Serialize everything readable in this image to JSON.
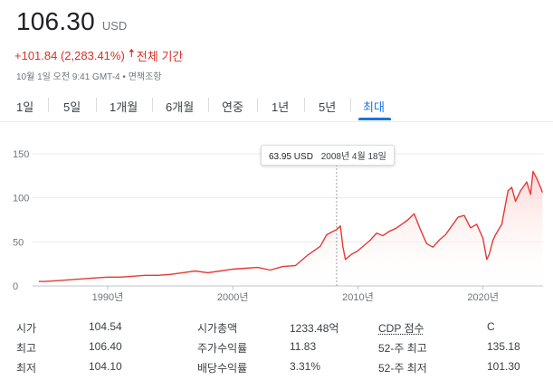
{
  "quote": {
    "price": "106.30",
    "currency": "USD",
    "change": "+101.84 (2,283.41%)",
    "period": "전체 기간",
    "timestamp": "10월 1일 오전 9:41 GMT-4",
    "disclaimer": "면책조항"
  },
  "tabs": [
    "1일",
    "5일",
    "1개월",
    "6개월",
    "연중",
    "1년",
    "5년",
    "최대"
  ],
  "active_tab": "최대",
  "tooltip": {
    "value": "63.95 USD",
    "date": "2008년 4월 18일"
  },
  "colors": {
    "line": "#e53935",
    "fill": "#fde8e7",
    "accent": "#1a73e8",
    "negative": "#d93025"
  },
  "stats": {
    "row1": {
      "l1": "시가",
      "v1": "104.54",
      "l2": "시가총액",
      "v2": "1233.48억",
      "l3": "CDP 점수",
      "v3": "C"
    },
    "row2": {
      "l1": "최고",
      "v1": "106.40",
      "l2": "주가수익률",
      "v2": "11.83",
      "l3": "52-주 최고",
      "v3": "135.18"
    },
    "row3": {
      "l1": "최저",
      "v1": "104.10",
      "l2": "배당수익률",
      "v2": "3.31%",
      "l3": "52-주 최저",
      "v3": "101.30"
    }
  },
  "chart_data": {
    "type": "area",
    "x": [
      1984.5,
      1985,
      1986,
      1987,
      1988,
      1989,
      1990,
      1991,
      1992,
      1993,
      1994,
      1995,
      1996,
      1997,
      1998,
      1999,
      2000,
      2001,
      2002,
      2003,
      2004,
      2005,
      2006,
      2007,
      2007.5,
      2008,
      2008.3,
      2008.6,
      2008.8,
      2009,
      2009.5,
      2010,
      2011,
      2011.5,
      2012,
      2012.5,
      2013,
      2013.5,
      2014,
      2014.5,
      2015,
      2015.5,
      2016,
      2016.5,
      2017,
      2017.5,
      2018,
      2018.5,
      2019,
      2019.5,
      2020,
      2020.3,
      2020.5,
      2020.8,
      2021,
      2021.5,
      2022,
      2022.3,
      2022.6,
      2023,
      2023.5,
      2023.8,
      2024,
      2024.3,
      2024.6,
      2024.75
    ],
    "y": [
      5,
      5,
      6,
      7,
      8,
      9,
      10,
      10,
      11,
      12,
      12,
      13,
      15,
      17,
      15,
      17,
      19,
      20,
      21,
      18,
      22,
      23,
      35,
      45,
      58,
      62,
      64,
      68,
      45,
      30,
      36,
      40,
      52,
      60,
      57,
      62,
      65,
      70,
      75,
      82,
      64,
      48,
      44,
      52,
      58,
      68,
      78,
      80,
      66,
      70,
      54,
      30,
      36,
      52,
      58,
      70,
      108,
      112,
      96,
      108,
      118,
      104,
      130,
      122,
      112,
      106
    ],
    "x_ticks": [
      "1990년",
      "2000년",
      "2010년",
      "2020년"
    ],
    "x_tick_values": [
      1990,
      2000,
      2010,
      2020
    ],
    "y_ticks": [
      "0",
      "50",
      "100",
      "150"
    ],
    "y_tick_values": [
      0,
      50,
      100,
      150
    ],
    "xlim": [
      1984,
      2024.8
    ],
    "ylim": [
      0,
      150
    ],
    "grid": true,
    "highlight": {
      "x": 2008.3,
      "y": 63.95
    }
  }
}
